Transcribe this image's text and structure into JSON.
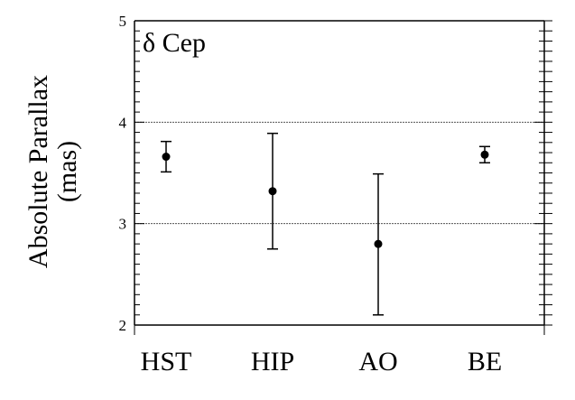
{
  "chart_data": {
    "type": "scatter",
    "title": "",
    "annotation": "δ Cep",
    "ylabel_line1": "Absolute Parallax",
    "ylabel_line2": "(mas)",
    "xlabel": "",
    "categories": [
      "HST",
      "HIP",
      "AO",
      "BE"
    ],
    "values": [
      3.66,
      3.32,
      2.8,
      3.68
    ],
    "error_low": [
      3.51,
      2.75,
      2.1,
      3.6
    ],
    "error_high": [
      3.81,
      3.89,
      3.49,
      3.76
    ],
    "ylim": [
      2,
      5
    ],
    "yticks": [
      "2",
      "3",
      "4",
      "5"
    ],
    "reference_lines": [
      3,
      4
    ],
    "grid": false,
    "legend": "none",
    "colors": {
      "marker": "#000000",
      "axis": "#000000",
      "reference_line": "#555555"
    }
  }
}
